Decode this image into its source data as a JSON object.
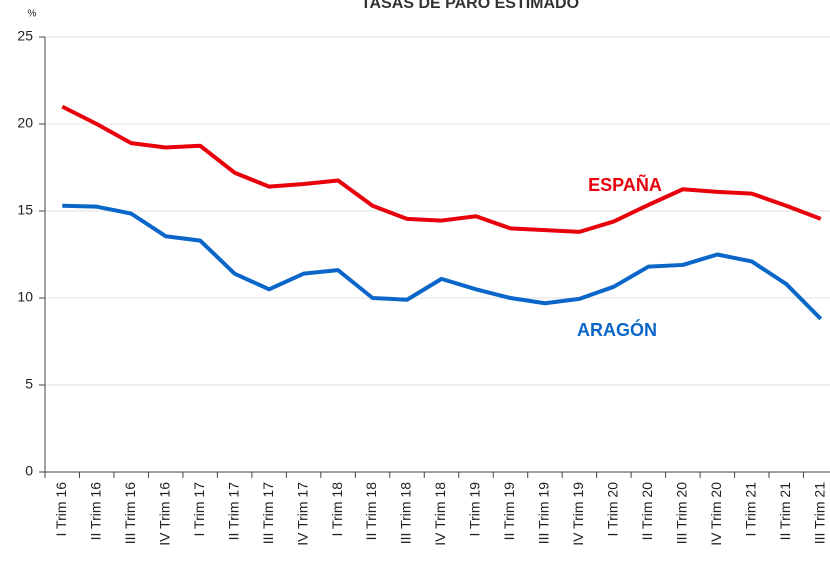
{
  "chart_data": {
    "type": "line",
    "title": "TASAS DE PARO ESTIMADO",
    "y_label": "%",
    "categories": [
      "I Trim 16",
      "II Trim 16",
      "III Trim 16",
      "IV Trim 16",
      "I Trim 17",
      "II Trim 17",
      "III Trim 17",
      "IV Trim 17",
      "I Trim 18",
      "II Trim 18",
      "III Trim 18",
      "IV Trim 18",
      "I Trim 19",
      "II Trim 19",
      "III Trim 19",
      "IV Trim 19",
      "I Trim 20",
      "II Trim 20",
      "III Trim 20",
      "IV Trim 20",
      "I Trim 21",
      "II Trim 21",
      "III Trim 21"
    ],
    "series": [
      {
        "name": "ESPAÑA",
        "color": "#e8000b",
        "values": [
          21.0,
          20.0,
          18.9,
          18.65,
          18.75,
          17.2,
          16.4,
          16.55,
          16.75,
          15.3,
          14.55,
          14.45,
          14.7,
          14.0,
          13.9,
          13.8,
          14.4,
          15.35,
          16.25,
          16.1,
          16.0,
          15.3,
          14.55
        ]
      },
      {
        "name": "ARAGÓN",
        "color": "#0a66c8",
        "values": [
          15.3,
          15.25,
          14.85,
          13.55,
          13.3,
          11.4,
          10.5,
          11.4,
          11.6,
          10.0,
          9.9,
          11.1,
          10.5,
          10.0,
          9.7,
          9.95,
          10.65,
          11.8,
          11.9,
          12.5,
          12.1,
          10.8,
          8.8
        ]
      }
    ],
    "ylim": [
      0,
      25
    ],
    "yticks": [
      0,
      5,
      10,
      15,
      20,
      25
    ],
    "grid": true
  }
}
